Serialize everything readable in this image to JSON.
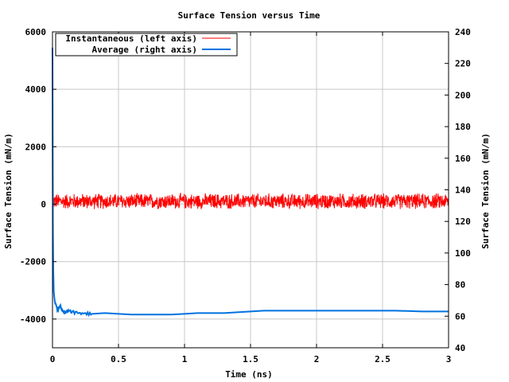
{
  "chart_data": {
    "type": "line",
    "title": "Surface Tension versus Time",
    "xlabel": "Time (ns)",
    "ylabel_left": "Surface Tension (mN/m)",
    "ylabel_right": "Surface Tension (mN/m)",
    "xlim": [
      0,
      3
    ],
    "ylim_left": [
      -5000,
      6000
    ],
    "ylim_right": [
      40,
      240
    ],
    "x_ticks": [
      "0",
      "0.5",
      "1",
      "1.5",
      "2",
      "2.5",
      "3"
    ],
    "y_left_ticks": [
      "6000",
      "4000",
      "2000",
      "0",
      "-2000",
      "-4000"
    ],
    "y_right_ticks": [
      "240",
      "220",
      "200",
      "180",
      "160",
      "140",
      "120",
      "100",
      "80",
      "60",
      "40"
    ],
    "grid": true,
    "legend_position": "top-left",
    "series": [
      {
        "name": "Instantaneous (left axis)",
        "axis": "left",
        "color": "#ff0000",
        "mean": 100,
        "noise_amplitude": 300,
        "x_range": [
          0,
          3
        ],
        "values_start": [
          [
            0,
            5400
          ],
          [
            0.002,
            1500
          ],
          [
            0.005,
            300
          ]
        ]
      },
      {
        "name": "Average (right axis)",
        "axis": "right",
        "color": "#0072e0",
        "x": [
          0,
          0.003,
          0.006,
          0.01,
          0.02,
          0.04,
          0.06,
          0.08,
          0.1,
          0.12,
          0.15,
          0.2,
          0.25,
          0.3,
          0.4,
          0.5,
          0.6,
          0.7,
          0.8,
          0.9,
          1.0,
          1.1,
          1.2,
          1.3,
          1.4,
          1.5,
          1.6,
          1.7,
          1.8,
          1.9,
          2.0,
          2.2,
          2.4,
          2.6,
          2.8,
          3.0
        ],
        "y": [
          230,
          120,
          90,
          75,
          68,
          64,
          67,
          63,
          62,
          64,
          63,
          62,
          62,
          61.5,
          62,
          61.5,
          61,
          61,
          61,
          61,
          61.5,
          62,
          62,
          62,
          62.5,
          63,
          63.5,
          63.5,
          63.5,
          63.5,
          63.5,
          63.5,
          63.5,
          63.5,
          63,
          63
        ]
      }
    ]
  }
}
